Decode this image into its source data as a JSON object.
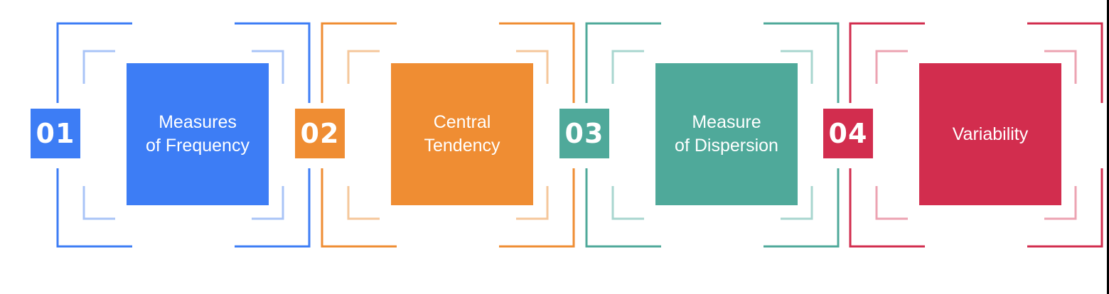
{
  "steps": [
    {
      "number": "01",
      "label": "Measures\nof Frequency",
      "color": "#3d7df5",
      "light": "#a9c4f7"
    },
    {
      "number": "02",
      "label": "Central\nTendency",
      "color": "#ef8d33",
      "light": "#f5c79b"
    },
    {
      "number": "03",
      "label": "Measure\nof Dispersion",
      "color": "#4fa99a",
      "light": "#a8d6cf"
    },
    {
      "number": "04",
      "label": "Variability",
      "color": "#d22d4e",
      "light": "#eca3b2"
    }
  ]
}
